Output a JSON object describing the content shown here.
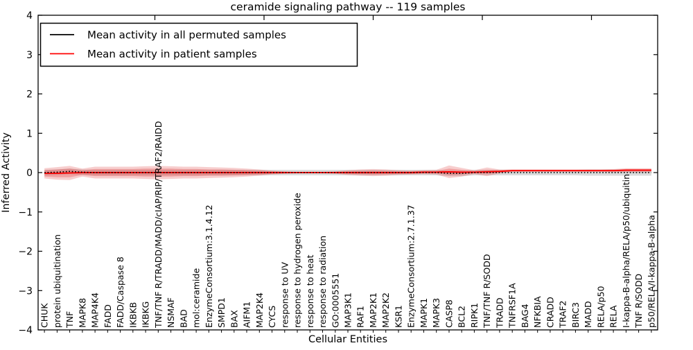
{
  "chart_data": {
    "type": "line",
    "title": "ceramide signaling pathway -- 119 samples",
    "xlabel": "Cellular Entities",
    "ylabel": "Inferred Activity",
    "ylim": [
      -4,
      4
    ],
    "yticks": [
      4,
      3,
      2,
      1,
      0,
      -1,
      -2,
      -3,
      -4
    ],
    "grid": false,
    "legend_position": "upper left",
    "categories": [
      "CHUK",
      "protein ubiquitination",
      "TNF",
      "MAPK8",
      "MAP4K4",
      "FADD",
      "FADD/Caspase 8",
      "IKBKB",
      "IKBKG",
      "TNF/TNF R/TRADD/MADD/cIAP/RIP/TRAF2/RAIDD",
      "NSMAF",
      "BAD",
      "mol:ceramide",
      "EnzymeConsortium:3.1.4.12",
      "SMPD1",
      "BAX",
      "AIFM1",
      "MAP2K4",
      "CYCS",
      "response to UV",
      "response to hydrogen peroxide",
      "response to heat",
      "response to radiation",
      "GO:0005551",
      "MAP3K1",
      "RAF1",
      "MAP2K1",
      "MAP2K2",
      "KSR1",
      "EnzymeConsortium:2.7.1.37",
      "MAPK1",
      "MAPK3",
      "CASP8",
      "BCL2",
      "RIPK1",
      "TNF/TNF R/SODD",
      "TRADD",
      "TNFRSF1A",
      "BAG4",
      "NFKBIA",
      "CRADD",
      "TRAF2",
      "BIRC3",
      "MADD",
      "RELA/p50",
      "RELA",
      "I-kappa-B-alpha/RELA/p50/ubiquitin",
      "TNF R/SODD",
      "p50/RELA/I-kappa-B-alpha"
    ],
    "series": [
      {
        "key": "permuted",
        "name": "Mean activity in all permuted samples",
        "color": "#000000",
        "line_style": "dotted",
        "values": [
          0,
          0.01,
          0.03,
          0.01,
          0,
          0,
          0,
          0,
          0,
          0,
          0,
          0,
          0,
          0,
          0,
          0,
          0,
          0,
          0,
          0,
          0,
          0,
          0,
          0,
          0,
          0,
          0,
          0,
          0,
          0,
          0,
          0,
          -0.02,
          -0.02,
          0,
          0,
          0,
          0,
          0,
          0,
          0,
          0,
          0,
          0,
          0,
          0,
          0,
          0,
          0
        ]
      },
      {
        "key": "patient",
        "name": "Mean activity in patient samples",
        "color": "#ff0000",
        "line_style": "solid",
        "values": [
          -0.02,
          -0.02,
          -0.01,
          0,
          0,
          0,
          0,
          0,
          0,
          0,
          0,
          0,
          0,
          0,
          0,
          0,
          0,
          0,
          0,
          0,
          0,
          0,
          0,
          0,
          0,
          0,
          0,
          0,
          0,
          0,
          0.01,
          0.01,
          0.02,
          0.01,
          0.01,
          0.02,
          0.03,
          0.05,
          0.05,
          0.05,
          0.05,
          0.05,
          0.05,
          0.05,
          0.05,
          0.05,
          0.06,
          0.06,
          0.06
        ]
      }
    ],
    "bands": [
      {
        "name": "permuted-std",
        "center": "permuted",
        "color": "#999999",
        "opacity": 0.35,
        "half_widths": [
          0.07,
          0.07,
          0.07,
          0.07,
          0.07,
          0.07,
          0.07,
          0.07,
          0.07,
          0.07,
          0.07,
          0.07,
          0.07,
          0.07,
          0.07,
          0.07,
          0.07,
          0.07,
          0.07,
          0.07,
          0.07,
          0.07,
          0.07,
          0.07,
          0.07,
          0.07,
          0.07,
          0.07,
          0.07,
          0.07,
          0.07,
          0.07,
          0.07,
          0.07,
          0.07,
          0.07,
          0.07,
          0.07,
          0.07,
          0.07,
          0.07,
          0.07,
          0.07,
          0.08,
          0.08,
          0.08,
          0.08,
          0.08,
          0.08
        ]
      },
      {
        "name": "patient-outer",
        "center": "patient",
        "color": "#e03c3c",
        "opacity": 0.25,
        "half_widths": [
          0.13,
          0.16,
          0.18,
          0.1,
          0.15,
          0.15,
          0.15,
          0.15,
          0.16,
          0.17,
          0.16,
          0.15,
          0.15,
          0.14,
          0.13,
          0.12,
          0.1,
          0.08,
          0.05,
          0.03,
          0.02,
          0.02,
          0.02,
          0.03,
          0.06,
          0.08,
          0.09,
          0.08,
          0.06,
          0.05,
          0.05,
          0.06,
          0.16,
          0.11,
          0.05,
          0.11,
          0.05,
          0.03,
          0.03,
          0.03,
          0.03,
          0.03,
          0.03,
          0.03,
          0.03,
          0.04,
          0.05,
          0.05,
          0.05
        ]
      },
      {
        "name": "patient-inner",
        "center": "patient",
        "color": "#e03c3c",
        "opacity": 0.3,
        "half_widths": [
          0.08,
          0.1,
          0.11,
          0.06,
          0.09,
          0.09,
          0.09,
          0.09,
          0.1,
          0.1,
          0.1,
          0.09,
          0.09,
          0.08,
          0.08,
          0.07,
          0.06,
          0.05,
          0.03,
          0.02,
          0.01,
          0.01,
          0.01,
          0.02,
          0.03,
          0.04,
          0.05,
          0.04,
          0.03,
          0.03,
          0.03,
          0.03,
          0.08,
          0.06,
          0.03,
          0.05,
          0.03,
          0.02,
          0.02,
          0.02,
          0.02,
          0.02,
          0.02,
          0.02,
          0.02,
          0.02,
          0.03,
          0.03,
          0.03
        ]
      }
    ]
  }
}
